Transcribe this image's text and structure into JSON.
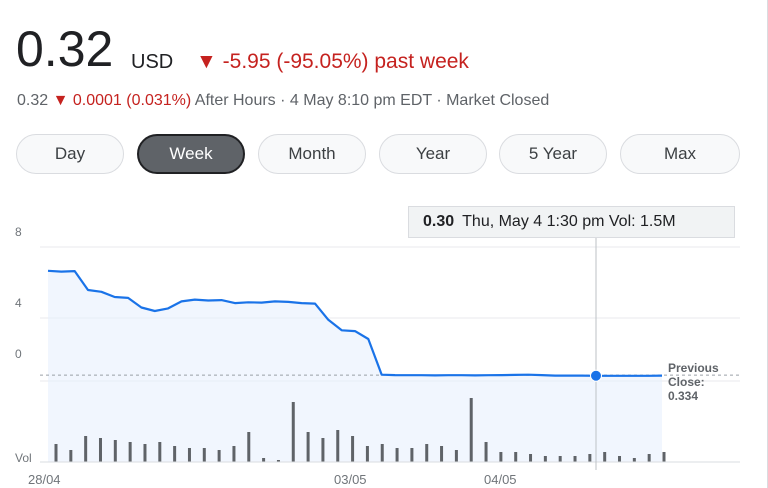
{
  "quote": {
    "price": "0.32",
    "currency": "USD",
    "change_arrow": "▼",
    "change": "-5.95 (-95.05%) past week",
    "after_hours_price": "0.32",
    "after_hours_arrow": "▼",
    "after_hours_change": "0.0001 (0.031%)",
    "after_hours_text": "After Hours · 4 May 8:10 pm EDT · Market Closed"
  },
  "tabs": [
    {
      "label": "Day"
    },
    {
      "label": "Week"
    },
    {
      "label": "Month"
    },
    {
      "label": "Year"
    },
    {
      "label": "5 Year"
    },
    {
      "label": "Max"
    }
  ],
  "active_tab": "Week",
  "tooltip": {
    "value": "0.30",
    "text": "Thu, May 4 1:30 pm  Vol: 1.5M"
  },
  "previous_close": {
    "line1": "Previous",
    "line2": "Close:",
    "value": "0.334"
  },
  "colors": {
    "line": "#1a73e8",
    "fill": "#e8f0fe",
    "volume": "#5f6368",
    "down": "#c5221f"
  },
  "chart_data": {
    "type": "line",
    "y_tick_labels": [
      "8",
      "4",
      "0"
    ],
    "volume_label": "Vol",
    "x_tick_labels": [
      "28/04",
      "03/05",
      "04/05"
    ],
    "price_series": [
      6.3,
      6.25,
      6.28,
      5.2,
      5.1,
      4.8,
      4.75,
      4.2,
      4.0,
      4.15,
      4.55,
      4.65,
      4.6,
      4.62,
      4.45,
      4.5,
      4.48,
      4.55,
      4.52,
      4.45,
      4.42,
      3.5,
      2.9,
      2.85,
      2.4,
      0.36,
      0.34,
      0.33,
      0.33,
      0.32,
      0.33,
      0.33,
      0.32,
      0.33,
      0.34,
      0.35,
      0.36,
      0.34,
      0.31,
      0.31,
      0.31,
      0.3,
      0.3,
      0.3,
      0.3,
      0.3,
      0.31
    ],
    "volume_series": [
      0.9,
      0.6,
      1.3,
      1.2,
      1.1,
      1.0,
      0.9,
      1.0,
      0.8,
      0.7,
      0.7,
      0.6,
      0.8,
      1.5,
      0.2,
      0.1,
      3.0,
      1.5,
      1.2,
      1.6,
      1.3,
      0.8,
      0.9,
      0.7,
      0.7,
      0.9,
      0.8,
      0.6,
      3.2,
      1.0,
      0.5,
      0.5,
      0.4,
      0.3,
      0.3,
      0.3,
      0.4,
      0.5,
      0.3,
      0.2,
      0.4,
      0.5
    ],
    "previous_close": 0.334,
    "highlight_point": {
      "value": 0.3
    }
  }
}
